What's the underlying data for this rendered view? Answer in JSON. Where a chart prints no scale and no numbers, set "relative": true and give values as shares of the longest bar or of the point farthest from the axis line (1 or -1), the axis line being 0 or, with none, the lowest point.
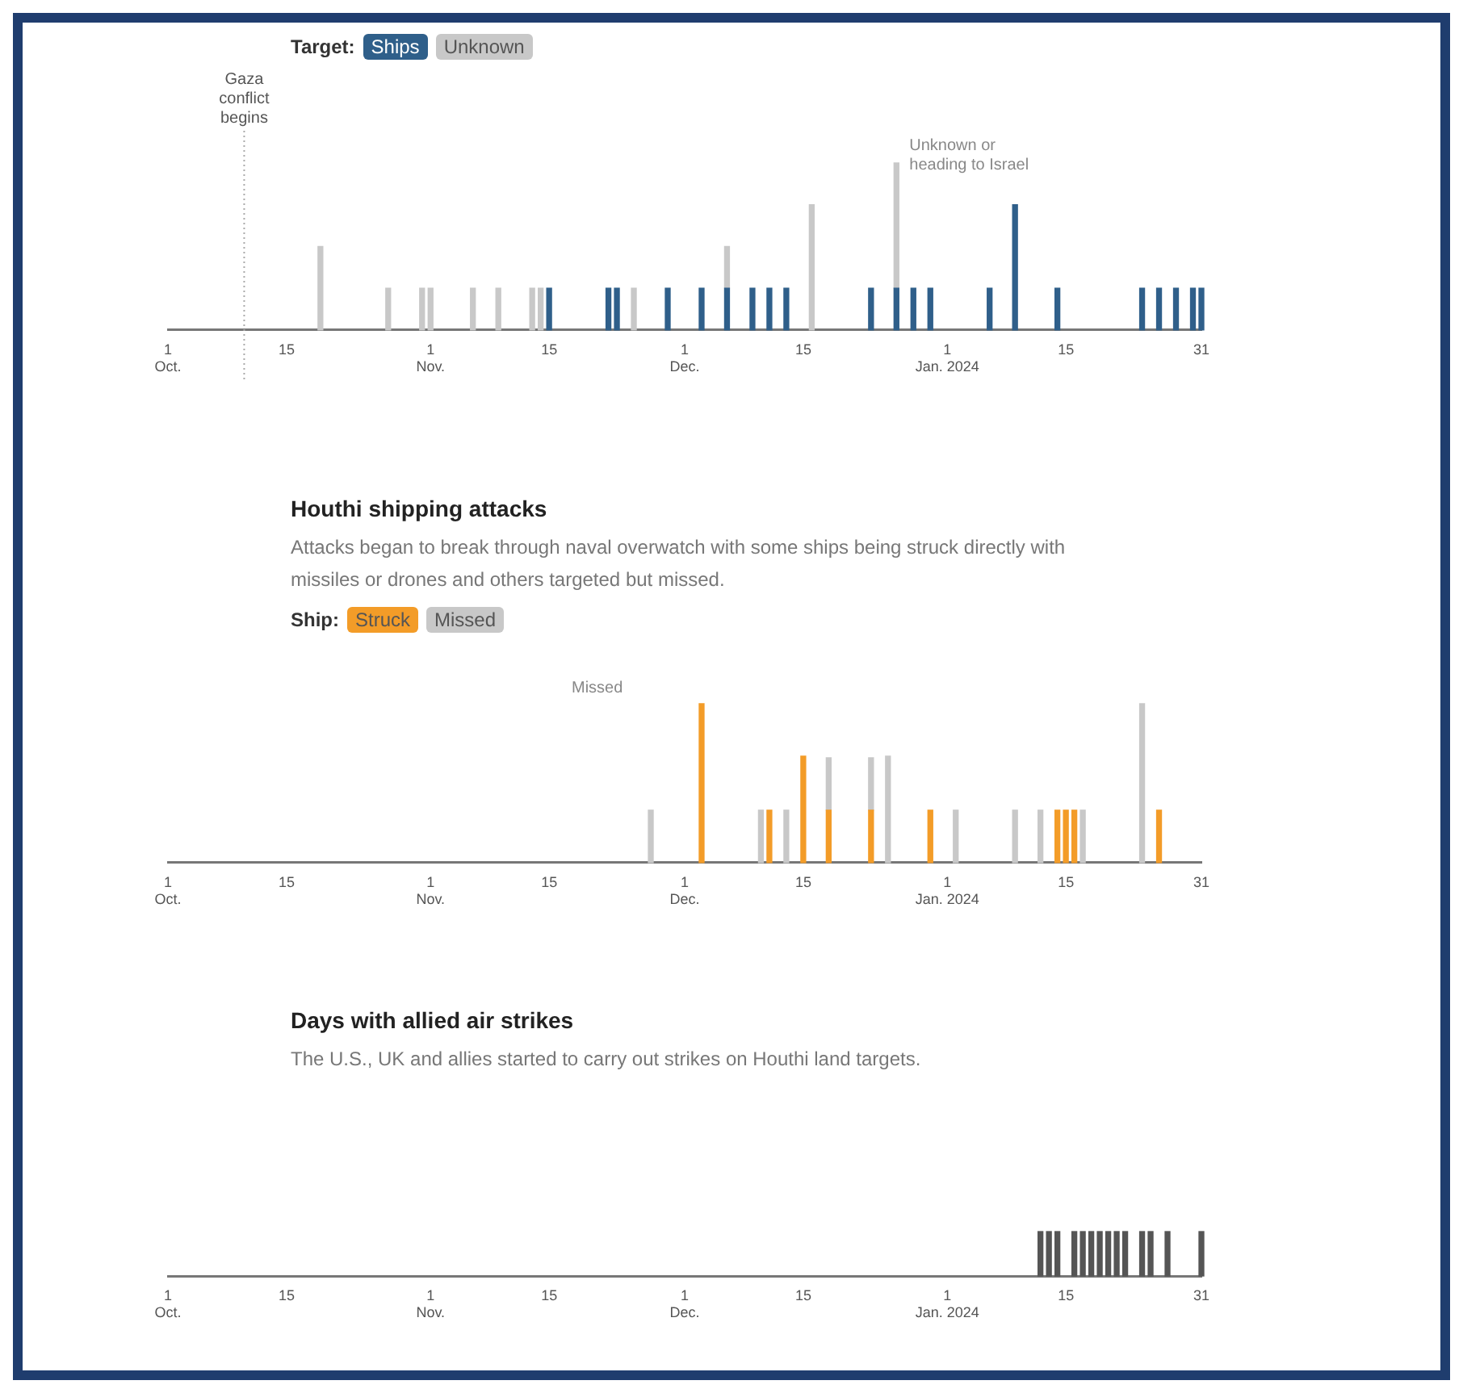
{
  "chart_data": [
    {
      "type": "bar",
      "stacked": true,
      "relative": true,
      "legend": "top",
      "legend_title": "Target:",
      "x": [
        "2023-10-19",
        "2023-10-27",
        "2023-10-31",
        "2023-11-01",
        "2023-11-06",
        "2023-11-09",
        "2023-11-13",
        "2023-11-14",
        "2023-11-15",
        "2023-11-22",
        "2023-11-23",
        "2023-11-25",
        "2023-11-29",
        "2023-12-03",
        "2023-12-06",
        "2023-12-09",
        "2023-12-11",
        "2023-12-13",
        "2023-12-16",
        "2023-12-23",
        "2023-12-26",
        "2023-12-28",
        "2023-12-30",
        "2024-01-06",
        "2024-01-09",
        "2024-01-14",
        "2024-01-24",
        "2024-01-26",
        "2024-01-28",
        "2024-01-30",
        "2024-01-31"
      ],
      "series": [
        {
          "name": "Ships",
          "color": "#2f5f8a",
          "values": [
            null,
            null,
            null,
            null,
            null,
            null,
            null,
            null,
            0.25,
            0.25,
            0.25,
            null,
            0.25,
            0.25,
            0.25,
            0.25,
            0.25,
            0.25,
            null,
            0.25,
            0.25,
            0.25,
            0.25,
            0.25,
            0.75,
            0.25,
            0.25,
            0.25,
            0.25,
            0.25,
            0.25
          ]
        },
        {
          "name": "Unknown",
          "color": "#c8c8c8",
          "values": [
            0.5,
            0.25,
            0.25,
            0.25,
            0.25,
            0.25,
            0.25,
            0.25,
            null,
            null,
            null,
            0.25,
            null,
            null,
            0.25,
            null,
            null,
            null,
            0.75,
            null,
            0.75,
            null,
            null,
            null,
            null,
            null,
            null,
            null,
            null,
            null,
            null
          ]
        }
      ],
      "xlim": [
        "2023-10-01",
        "2024-01-31"
      ],
      "xticks": [
        {
          "value": "2023-10-01",
          "label": "1\nOct."
        },
        {
          "value": "2023-10-15",
          "label": "15"
        },
        {
          "value": "2023-11-01",
          "label": "1\nNov."
        },
        {
          "value": "2023-11-15",
          "label": "15"
        },
        {
          "value": "2023-12-01",
          "label": "1\nDec."
        },
        {
          "value": "2023-12-15",
          "label": "15"
        },
        {
          "value": "2024-01-01",
          "label": "1\nJan. 2024"
        },
        {
          "value": "2024-01-15",
          "label": "15"
        },
        {
          "value": "2024-01-31",
          "label": "31"
        }
      ],
      "ref_lines": [
        {
          "axis": "x",
          "value": "2023-10-10",
          "label": "Gaza conflict begins",
          "line_style": "dotted",
          "color": "#aaaaaa"
        }
      ],
      "annotations": [
        {
          "text": "Unknown or heading to Israel",
          "x": "2023-12-26",
          "y": 1
        }
      ]
    },
    {
      "type": "bar",
      "stacked": true,
      "relative": true,
      "legend": "top",
      "legend_title": "Ship:",
      "title": "Houthi shipping attacks",
      "subtitle": "Attacks began to break through naval overwatch with some ships being struck directly with missiles or drones and others targeted but missed.",
      "x": [
        "2023-11-27",
        "2023-12-03",
        "2023-12-10",
        "2023-12-11",
        "2023-12-13",
        "2023-12-15",
        "2023-12-18",
        "2023-12-23",
        "2023-12-25",
        "2023-12-30",
        "2024-01-02",
        "2024-01-09",
        "2024-01-12",
        "2024-01-14",
        "2024-01-15",
        "2024-01-16",
        "2024-01-17",
        "2024-01-24",
        "2024-01-26"
      ],
      "series": [
        {
          "name": "Struck",
          "color": "#f39c28",
          "values": [
            null,
            1,
            null,
            0.33,
            null,
            0.67,
            0.33,
            0.33,
            null,
            0.33,
            null,
            null,
            null,
            0.33,
            0.33,
            0.33,
            null,
            null,
            0.33
          ]
        },
        {
          "name": "Missed",
          "color": "#c8c8c8",
          "values": [
            0.33,
            null,
            0.33,
            null,
            0.33,
            null,
            0.33,
            0.33,
            0.67,
            null,
            0.33,
            0.33,
            0.33,
            null,
            null,
            null,
            0.33,
            1,
            null
          ]
        }
      ],
      "xlim": [
        "2023-10-01",
        "2024-01-31"
      ],
      "xticks": [
        {
          "value": "2023-10-01",
          "label": "1\nOct."
        },
        {
          "value": "2023-10-15",
          "label": "15"
        },
        {
          "value": "2023-11-01",
          "label": "1\nNov."
        },
        {
          "value": "2023-11-15",
          "label": "15"
        },
        {
          "value": "2023-12-01",
          "label": "1\nDec."
        },
        {
          "value": "2023-12-15",
          "label": "15"
        },
        {
          "value": "2024-01-01",
          "label": "1\nJan. 2024"
        },
        {
          "value": "2024-01-15",
          "label": "15"
        },
        {
          "value": "2024-01-31",
          "label": "31"
        }
      ],
      "annotations": [
        "Missed"
      ]
    },
    {
      "type": "bar",
      "relative": true,
      "title": "Days with allied air strikes",
      "subtitle": "The U.S., UK and allies started to carry out strikes on Houthi land targets.",
      "x": [
        "2024-01-12",
        "2024-01-13",
        "2024-01-14",
        "2024-01-16",
        "2024-01-17",
        "2024-01-18",
        "2024-01-19",
        "2024-01-20",
        "2024-01-21",
        "2024-01-22",
        "2024-01-24",
        "2024-01-25",
        "2024-01-27",
        "2024-01-31"
      ],
      "series": [
        {
          "color": "#555555",
          "values": [
            1,
            1,
            1,
            1,
            1,
            1,
            1,
            1,
            1,
            1,
            1,
            1,
            1,
            1
          ]
        }
      ],
      "xlim": [
        "2023-10-01",
        "2024-01-31"
      ],
      "xticks": [
        {
          "value": "2023-10-01",
          "label": "1\nOct."
        },
        {
          "value": "2023-10-15",
          "label": "15"
        },
        {
          "value": "2023-11-01",
          "label": "1\nNov."
        },
        {
          "value": "2023-11-15",
          "label": "15"
        },
        {
          "value": "2023-12-01",
          "label": "1\nDec."
        },
        {
          "value": "2023-12-15",
          "label": "15"
        },
        {
          "value": "2024-01-01",
          "label": "1\nJan. 2024"
        },
        {
          "value": "2024-01-15",
          "label": "15"
        },
        {
          "value": "2024-01-31",
          "label": "31"
        }
      ]
    }
  ]
}
